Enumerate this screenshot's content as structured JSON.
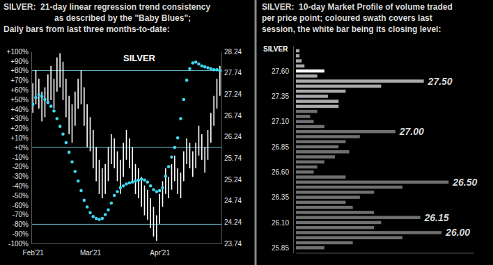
{
  "chart_data": [
    {
      "type": "combo",
      "title": [
        "SILVER:  21-day linear regression trend consistency",
        "as described by the \"Baby Blues\";",
        "Daily bars from last three months-to-date:"
      ],
      "label": "SILVER",
      "categories": [
        "Feb'21",
        null,
        null,
        null,
        null,
        null,
        null,
        null,
        null,
        null,
        null,
        null,
        null,
        null,
        null,
        null,
        null,
        null,
        null,
        "Mar'21",
        null,
        null,
        null,
        null,
        null,
        null,
        null,
        null,
        null,
        null,
        null,
        null,
        null,
        null,
        null,
        null,
        null,
        null,
        null,
        null,
        null,
        null,
        "Apr'21",
        null,
        null,
        null,
        null,
        null,
        null,
        null,
        null,
        null,
        null,
        null,
        null,
        null,
        null,
        null,
        null,
        null,
        null,
        null,
        null
      ],
      "ylim": [
        -100,
        100
      ],
      "yticks": [
        {
          "value": -100,
          "label": "-100%"
        },
        {
          "value": -90,
          "label": "-90%"
        },
        {
          "value": -80,
          "label": "-80%"
        },
        {
          "value": -70,
          "label": "-70%"
        },
        {
          "value": -60,
          "label": "-60%"
        },
        {
          "value": -50,
          "label": "-50%"
        },
        {
          "value": -40,
          "label": "-40%"
        },
        {
          "value": -30,
          "label": "-30%"
        },
        {
          "value": -20,
          "label": "-20%"
        },
        {
          "value": -10,
          "label": "-10%"
        },
        {
          "value": 0,
          "label": "+0%"
        },
        {
          "value": 10,
          "label": "+10%"
        },
        {
          "value": 20,
          "label": "+20%"
        },
        {
          "value": 30,
          "label": "+30%"
        },
        {
          "value": 40,
          "label": "+40%"
        },
        {
          "value": 50,
          "label": "+50%"
        },
        {
          "value": 60,
          "label": "+60%"
        },
        {
          "value": 70,
          "label": "+70%"
        },
        {
          "value": 80,
          "label": "+80%"
        },
        {
          "value": 90,
          "label": "+90%"
        },
        {
          "value": 100,
          "label": "+100%"
        }
      ],
      "y2lim": [
        23.74,
        28.24
      ],
      "y2ticks": [
        28.24,
        27.74,
        27.24,
        26.74,
        26.24,
        25.74,
        25.24,
        24.74,
        24.24,
        23.74
      ],
      "reference_lines": [
        80,
        0,
        -80
      ],
      "series": [
        {
          "type": "range_bar",
          "axis": "y2",
          "color": "#ffffff",
          "high": [
            27.5,
            27.8,
            27.6,
            27.3,
            27.4,
            27.7,
            27.9,
            27.6,
            28.1,
            28.2,
            28.0,
            27.6,
            27.2,
            27.0,
            27.3,
            27.6,
            27.8,
            27.4,
            27.0,
            26.7,
            26.4,
            26.0,
            25.7,
            25.5,
            25.6,
            26.0,
            26.3,
            26.2,
            25.9,
            25.7,
            26.1,
            26.4,
            26.2,
            26.0,
            25.6,
            25.5,
            25.3,
            25.1,
            25.0,
            24.8,
            24.6,
            24.4,
            24.9,
            25.2,
            25.5,
            25.3,
            25.6,
            25.8,
            25.5,
            25.4,
            25.9,
            26.2,
            26.1,
            25.9,
            26.1,
            26.5,
            26.3,
            26.0,
            26.4,
            26.8,
            27.2,
            27.6,
            27.9
          ],
          "low": [
            26.8,
            27.0,
            26.9,
            26.6,
            26.7,
            27.0,
            27.1,
            26.9,
            27.3,
            27.4,
            27.1,
            26.7,
            26.3,
            26.1,
            26.5,
            26.9,
            27.0,
            26.5,
            26.0,
            25.9,
            25.5,
            25.2,
            24.9,
            24.8,
            24.9,
            25.2,
            25.6,
            25.5,
            25.2,
            24.9,
            25.3,
            25.7,
            25.5,
            25.2,
            24.9,
            24.8,
            24.6,
            24.4,
            24.3,
            24.1,
            23.9,
            23.8,
            24.2,
            24.6,
            24.9,
            24.8,
            25.0,
            25.2,
            24.9,
            24.8,
            25.2,
            25.6,
            25.5,
            25.3,
            25.5,
            25.8,
            25.7,
            25.4,
            25.7,
            26.1,
            26.5,
            26.9,
            27.2
          ]
        },
        {
          "type": "scatter",
          "marker": "circle",
          "color": "#3fd7f0",
          "values": [
            45,
            52,
            55,
            53,
            50,
            47,
            43,
            38,
            30,
            22,
            14,
            5,
            -5,
            -15,
            -25,
            -35,
            -45,
            -55,
            -62,
            -68,
            -72,
            -74,
            -75,
            -74,
            -70,
            -65,
            -58,
            -50,
            -46,
            -42,
            -40,
            -38,
            -37,
            -36,
            -35,
            -34,
            -33,
            -34,
            -36,
            -40,
            -44,
            -46,
            -45,
            -42,
            -30,
            -20,
            -10,
            0,
            10,
            30,
            50,
            70,
            82,
            88,
            89,
            87,
            85,
            84,
            83,
            82,
            81,
            81,
            80
          ]
        }
      ]
    },
    {
      "type": "bar",
      "orientation": "horizontal",
      "title": [
        "SILVER:  10-day Market Profile of volume traded",
        "per price point; coloured swath covers last",
        "session, the white bar being its closing level:"
      ],
      "label": "SILVER",
      "y": [
        27.8,
        27.75,
        27.7,
        27.65,
        27.6,
        27.55,
        27.5,
        27.45,
        27.4,
        27.35,
        27.3,
        27.25,
        27.2,
        27.15,
        27.1,
        27.05,
        27,
        26.95,
        26.9,
        26.85,
        26.8,
        26.75,
        26.7,
        26.65,
        26.6,
        26.55,
        26.5,
        26.45,
        26.4,
        26.35,
        26.3,
        26.25,
        26.2,
        26.15,
        26.1,
        26.05,
        26,
        25.95,
        25.9,
        25.85
      ],
      "values": [
        5,
        5,
        8,
        12,
        40,
        30,
        180,
        120,
        70,
        45,
        60,
        60,
        30,
        20,
        25,
        40,
        140,
        90,
        70,
        60,
        75,
        55,
        40,
        30,
        25,
        70,
        215,
        150,
        110,
        90,
        70,
        80,
        110,
        175,
        120,
        110,
        205,
        150,
        80,
        40
      ],
      "colors": [
        "#a9a9a9",
        "#a9a9a9",
        "#a9a9a9",
        "#a9a9a9",
        "#ffffff",
        "#a9a9a9",
        "#a9a9a9",
        "#a9a9a9",
        "#a9a9a9",
        "#a9a9a9",
        "#a9a9a9",
        "#a9a9a9",
        "#707070",
        "#707070",
        "#707070",
        "#707070",
        "#707070",
        "#707070",
        "#707070",
        "#707070",
        "#707070",
        "#707070",
        "#707070",
        "#707070",
        "#707070",
        "#707070",
        "#707070",
        "#707070",
        "#707070",
        "#707070",
        "#707070",
        "#707070",
        "#707070",
        "#707070",
        "#707070",
        "#707070",
        "#707070",
        "#707070",
        "#707070",
        "#707070"
      ],
      "ylim": [
        25.8,
        27.85
      ],
      "yticks": [
        {
          "value": 27.6,
          "label": "27.60"
        },
        27.35,
        {
          "value": 27.1,
          "label": "27.10"
        },
        26.85,
        {
          "value": 26.6,
          "label": "26.60"
        },
        26.35,
        {
          "value": 26.1,
          "label": "26.10"
        },
        25.85
      ],
      "xlim": [
        0,
        250
      ],
      "tick_labels": "y",
      "annotations": [
        {
          "label": "27.50",
          "value": 27.5
        },
        {
          "label": "27.00",
          "value": 27
        },
        {
          "label": "26.50",
          "value": 26.5
        },
        {
          "label": "26.15",
          "value": 26.15
        },
        {
          "label": "26.00",
          "value": 26
        }
      ]
    }
  ]
}
